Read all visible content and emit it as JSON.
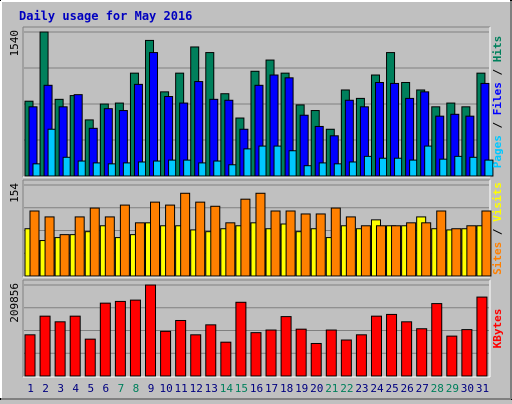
{
  "title": "Daily usage for May 2016",
  "chart_data": {
    "type": "bar",
    "title": "Daily usage for May 2016",
    "x": [
      "1",
      "2",
      "3",
      "4",
      "5",
      "6",
      "7",
      "8",
      "9",
      "10",
      "11",
      "12",
      "13",
      "14",
      "15",
      "16",
      "17",
      "18",
      "19",
      "20",
      "21",
      "22",
      "23",
      "24",
      "25",
      "26",
      "27",
      "28",
      "29",
      "30",
      "31"
    ],
    "weekend_days": [
      "7",
      "8",
      "14",
      "15",
      "21",
      "22",
      "28",
      "29"
    ],
    "panels": [
      {
        "name": "hits-files-pages",
        "ymax_label": "1540",
        "ymax": 1540,
        "side_labels": [
          "Pages",
          "Files",
          "Hits"
        ],
        "series": [
          {
            "name": "Hits",
            "color": "#00805c",
            "values": [
              800,
              1540,
              820,
              860,
              600,
              770,
              780,
              1100,
              1450,
              900,
              1100,
              1380,
              1320,
              880,
              620,
              1120,
              1240,
              1100,
              760,
              700,
              500,
              920,
              830,
              1080,
              1320,
              1000,
              920,
              740,
              780,
              740,
              1100
            ]
          },
          {
            "name": "Files",
            "color": "#0000ff",
            "values": [
              740,
              970,
              740,
              870,
              510,
              720,
              700,
              980,
              1320,
              850,
              780,
              1010,
              820,
              810,
              500,
              970,
              1080,
              1050,
              650,
              530,
              430,
              810,
              740,
              1000,
              990,
              830,
              900,
              640,
              660,
              640,
              990
            ]
          },
          {
            "name": "Pages",
            "color": "#00c8ff",
            "values": [
              130,
              500,
              200,
              160,
              140,
              130,
              140,
              150,
              160,
              170,
              170,
              140,
              160,
              120,
              290,
              320,
              320,
              270,
              110,
              140,
              130,
              150,
              210,
              190,
              190,
              170,
              320,
              180,
              210,
              200,
              170
            ]
          }
        ]
      },
      {
        "name": "visits-sites",
        "ymax_label": "154",
        "ymax": 154,
        "side_labels": [
          "Sites",
          "Visits"
        ],
        "series": [
          {
            "name": "Visits",
            "color": "#ffff00",
            "values": [
              80,
              60,
              65,
              70,
              75,
              85,
              65,
              70,
              90,
              85,
              85,
              78,
              75,
              80,
              85,
              90,
              80,
              88,
              75,
              80,
              65,
              85,
              80,
              95,
              85,
              85,
              100,
              80,
              78,
              80,
              85
            ]
          },
          {
            "name": "Sites",
            "color": "#ff8000",
            "values": [
              110,
              100,
              70,
              100,
              115,
              100,
              120,
              90,
              125,
              120,
              140,
              125,
              118,
              90,
              130,
              140,
              110,
              110,
              105,
              105,
              115,
              100,
              85,
              85,
              85,
              90,
              90,
              110,
              80,
              85,
              110
            ]
          }
        ]
      },
      {
        "name": "kbytes",
        "ymax_label": "209856",
        "ymax": 209856,
        "side_labels": [
          "KBytes"
        ],
        "series": [
          {
            "name": "KBytes",
            "color": "#ff0000",
            "values": [
              95000,
              138000,
              125000,
              138000,
              85000,
              168000,
              172000,
              175000,
              209856,
              103000,
              128000,
              95000,
              118000,
              78000,
              170000,
              100000,
              106000,
              137000,
              108000,
              75000,
              106000,
              83000,
              95000,
              138000,
              142000,
              125000,
              109000,
              167000,
              92000,
              107000,
              182000
            ]
          }
        ]
      }
    ]
  }
}
